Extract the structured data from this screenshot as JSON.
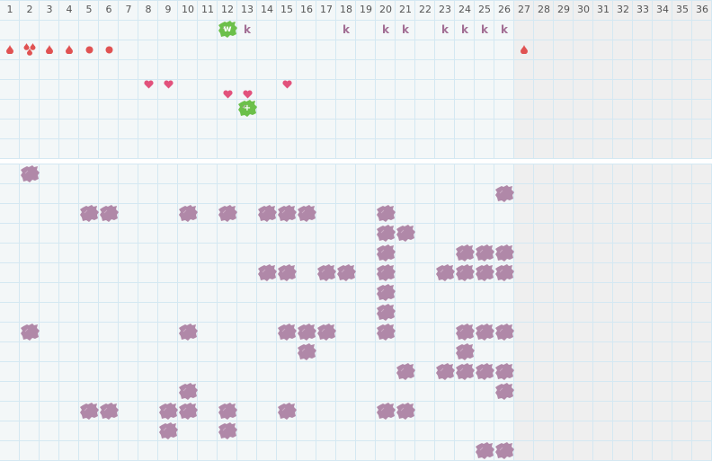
{
  "columns": [
    "1",
    "2",
    "3",
    "4",
    "5",
    "6",
    "7",
    "8",
    "9",
    "10",
    "11",
    "12",
    "13",
    "14",
    "15",
    "16",
    "17",
    "18",
    "19",
    "20",
    "21",
    "22",
    "23",
    "24",
    "25",
    "26",
    "27",
    "28",
    "29",
    "30",
    "31",
    "32",
    "33",
    "34",
    "35",
    "36"
  ],
  "inactive_from_column": 27,
  "colors": {
    "grid": "#d4e8f2",
    "background": "#f3f7f8",
    "inactive": "#efefef",
    "blob": "#b088a8",
    "green": "#6cc04a",
    "k": "#a26e94",
    "drop": "#e05252",
    "heart": "#e2527c"
  },
  "top_section": {
    "rows": 7,
    "marks": [
      {
        "row": 1,
        "col": 12,
        "icon": "green-badge",
        "label": "w"
      },
      {
        "row": 1,
        "col": 13,
        "icon": "letter",
        "label": "k"
      },
      {
        "row": 1,
        "col": 18,
        "icon": "letter",
        "label": "k"
      },
      {
        "row": 1,
        "col": 20,
        "icon": "letter",
        "label": "k"
      },
      {
        "row": 1,
        "col": 21,
        "icon": "letter",
        "label": "k"
      },
      {
        "row": 1,
        "col": 23,
        "icon": "letter",
        "label": "k"
      },
      {
        "row": 1,
        "col": 24,
        "icon": "letter",
        "label": "k"
      },
      {
        "row": 1,
        "col": 25,
        "icon": "letter",
        "label": "k"
      },
      {
        "row": 1,
        "col": 26,
        "icon": "letter",
        "label": "k"
      },
      {
        "row": 2,
        "col": 1,
        "icon": "drop"
      },
      {
        "row": 2,
        "col": 2,
        "icon": "triple-drop"
      },
      {
        "row": 2,
        "col": 3,
        "icon": "drop"
      },
      {
        "row": 2,
        "col": 4,
        "icon": "drop"
      },
      {
        "row": 2,
        "col": 5,
        "icon": "dot"
      },
      {
        "row": 2,
        "col": 6,
        "icon": "dot"
      },
      {
        "row": 2,
        "col": 27,
        "icon": "drop"
      },
      {
        "row": 4,
        "col": 8,
        "icon": "heart"
      },
      {
        "row": 4,
        "col": 9,
        "icon": "heart"
      },
      {
        "row": 4,
        "col": 15,
        "icon": "heart"
      },
      {
        "row": 4,
        "col": 12,
        "icon": "heart-low"
      },
      {
        "row": 4,
        "col": 13,
        "icon": "heart-low"
      },
      {
        "row": 5,
        "col": 13,
        "icon": "green-badge",
        "label": "+"
      }
    ]
  },
  "bottom_section": {
    "rows": 15,
    "blobs": [
      [
        2
      ],
      [
        26
      ],
      [
        5,
        6,
        10,
        12,
        14,
        15,
        16,
        20
      ],
      [
        20,
        21
      ],
      [
        20,
        24,
        25,
        26
      ],
      [
        14,
        15,
        17,
        18,
        20,
        23,
        24,
        25,
        26
      ],
      [
        20
      ],
      [
        20
      ],
      [
        2,
        10,
        15,
        16,
        17,
        20,
        24,
        25,
        26
      ],
      [
        16,
        24
      ],
      [
        21,
        23,
        24,
        25,
        26
      ],
      [
        10,
        26
      ],
      [
        5,
        6,
        9,
        10,
        12,
        15,
        20,
        21
      ],
      [
        9,
        12
      ],
      [
        25,
        26
      ]
    ]
  }
}
